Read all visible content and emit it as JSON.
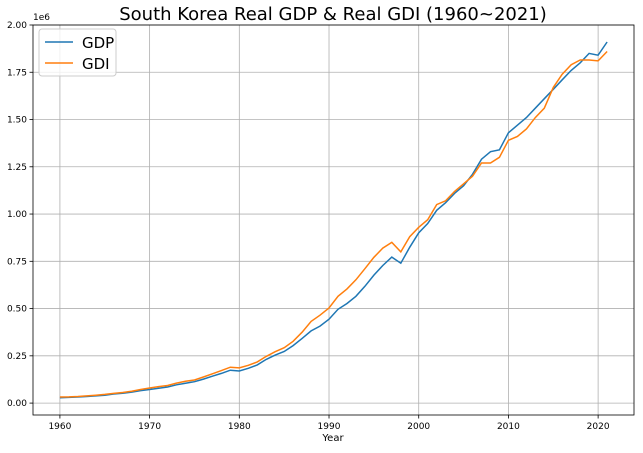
{
  "chart_data": {
    "type": "line",
    "title": "South Korea Real GDP & Real GDI (1960~2021)",
    "xlabel": "Year",
    "ylabel": "",
    "y_offset_label": "1e6",
    "xlim": [
      1957,
      2024
    ],
    "ylim": [
      -63000,
      2000000
    ],
    "x_ticks": [
      1960,
      1970,
      1980,
      1990,
      2000,
      2010,
      2020
    ],
    "x_tick_labels": [
      "1960",
      "1970",
      "1980",
      "1990",
      "2000",
      "2010",
      "2020"
    ],
    "y_ticks": [
      0,
      250000,
      500000,
      750000,
      1000000,
      1250000,
      1500000,
      1750000,
      2000000
    ],
    "y_tick_labels": [
      "0.00",
      "0.25",
      "0.50",
      "0.75",
      "1.00",
      "1.25",
      "1.50",
      "1.75",
      "2.00"
    ],
    "grid": true,
    "legend_position": "top-left",
    "x": [
      1960,
      1961,
      1962,
      1963,
      1964,
      1965,
      1966,
      1967,
      1968,
      1969,
      1970,
      1971,
      1972,
      1973,
      1974,
      1975,
      1976,
      1977,
      1978,
      1979,
      1980,
      1981,
      1982,
      1983,
      1984,
      1985,
      1986,
      1987,
      1988,
      1989,
      1990,
      1991,
      1992,
      1993,
      1994,
      1995,
      1996,
      1997,
      1998,
      1999,
      2000,
      2001,
      2002,
      2003,
      2004,
      2005,
      2006,
      2007,
      2008,
      2009,
      2010,
      2011,
      2012,
      2013,
      2014,
      2015,
      2016,
      2017,
      2018,
      2019,
      2020,
      2021
    ],
    "series": [
      {
        "name": "GDP",
        "color": "#1f77b4",
        "values": [
          28000,
          30000,
          32000,
          35000,
          38000,
          42000,
          48000,
          52000,
          58000,
          66000,
          72000,
          79000,
          85000,
          97000,
          105000,
          113000,
          127000,
          142000,
          157000,
          174000,
          170000,
          184000,
          202000,
          231000,
          254000,
          273000,
          304000,
          342000,
          382000,
          407000,
          444000,
          496000,
          527000,
          565000,
          618000,
          677000,
          728000,
          772000,
          740000,
          824000,
          900000,
          950000,
          1020000,
          1060000,
          1110000,
          1150000,
          1210000,
          1290000,
          1330000,
          1340000,
          1430000,
          1470000,
          1510000,
          1560000,
          1610000,
          1660000,
          1710000,
          1760000,
          1800000,
          1850000,
          1840000,
          1910000
        ]
      },
      {
        "name": "GDI",
        "color": "#ff7f0e",
        "values": [
          32000,
          33000,
          35000,
          38000,
          42000,
          46000,
          51000,
          56000,
          63000,
          72000,
          80000,
          87000,
          93000,
          106000,
          115000,
          122000,
          138000,
          155000,
          172000,
          190000,
          186000,
          200000,
          218000,
          247000,
          272000,
          293000,
          327000,
          375000,
          432000,
          465000,
          503000,
          565000,
          604000,
          652000,
          711000,
          771000,
          820000,
          850000,
          800000,
          880000,
          930000,
          970000,
          1050000,
          1070000,
          1120000,
          1160000,
          1200000,
          1270000,
          1270000,
          1300000,
          1390000,
          1410000,
          1450000,
          1510000,
          1560000,
          1670000,
          1740000,
          1790000,
          1815000,
          1815000,
          1810000,
          1860000
        ]
      }
    ]
  }
}
